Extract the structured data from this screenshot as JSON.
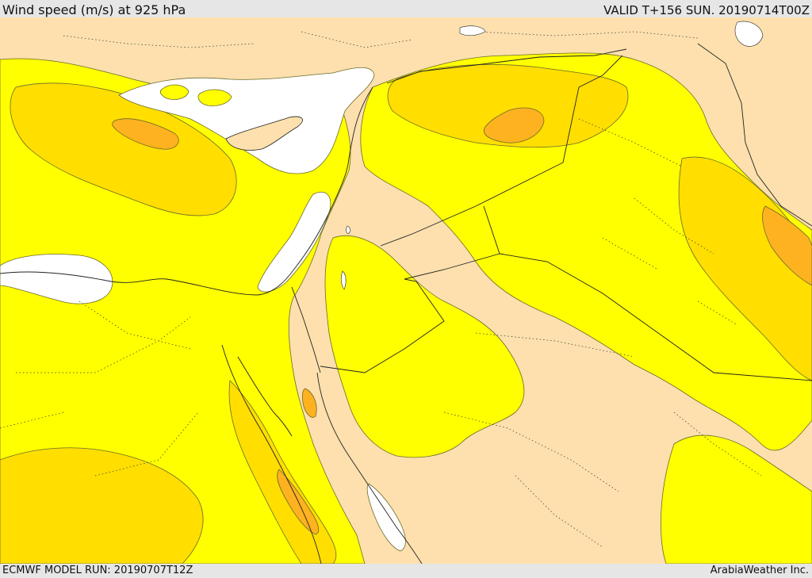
{
  "header": {
    "title": "Wind speed (m/s) at 925 hPa",
    "valid": "VALID T+156 SUN. 20190714T00Z"
  },
  "footer": {
    "model_run": "ECMWF MODEL RUN: 20190707T12Z",
    "credit": "ArabiaWeather Inc."
  },
  "map": {
    "region": "Eastern Mediterranean, Levant, Egypt, Arabian Peninsula, Iraq",
    "field": "wind speed contours",
    "colors": {
      "background": "#fde0ad",
      "band_1": "#ffff00",
      "band_2": "#ffde00",
      "band_3": "#ffb21f",
      "no_data": "#ffffff",
      "contour_line": "#6b6b2a",
      "border_line": "#222222",
      "province_line": "#333333"
    }
  }
}
